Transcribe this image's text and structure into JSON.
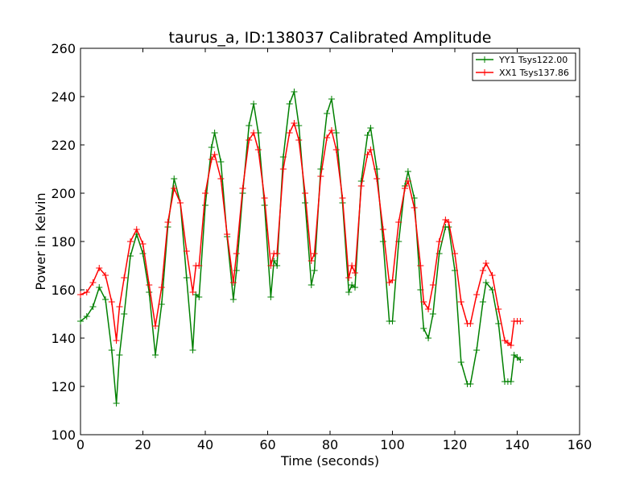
{
  "chart_data": {
    "type": "line",
    "title": "taurus_a, ID:138037 Calibrated Amplitude",
    "xlabel": "Time (seconds)",
    "ylabel": "Power in Kelvin",
    "xlim": [
      0,
      160
    ],
    "ylim": [
      100,
      260
    ],
    "xticks": [
      "0",
      "20",
      "40",
      "60",
      "80",
      "100",
      "120",
      "140",
      "160"
    ],
    "yticks": [
      "100",
      "120",
      "140",
      "160",
      "180",
      "200",
      "220",
      "240",
      "260"
    ],
    "grid": false,
    "legend_position": "top-right",
    "series": [
      {
        "name": "YY1 Tsys122.00",
        "color": "#008000",
        "marker": "+",
        "x": [
          0,
          2,
          4,
          6,
          8,
          10,
          11.5,
          12.5,
          14,
          16,
          18,
          20,
          22,
          24,
          26,
          28,
          30,
          32,
          34,
          36,
          37,
          38,
          40,
          42,
          43,
          45,
          47,
          49,
          50,
          52,
          54,
          55.5,
          57,
          59,
          61,
          62,
          63,
          65,
          67,
          68.5,
          70,
          72,
          74,
          75,
          77,
          79,
          80.5,
          82,
          84,
          86,
          87,
          88,
          90,
          92,
          93,
          95,
          97,
          99,
          100,
          102,
          104,
          105,
          107,
          109,
          110,
          111.5,
          113,
          115,
          117,
          118,
          120,
          122,
          124,
          125,
          127,
          129,
          130,
          132,
          134,
          136,
          137,
          138,
          139,
          140,
          141
        ],
        "y": [
          147,
          149,
          153,
          161,
          156,
          135,
          113,
          133,
          150,
          174,
          183,
          175,
          159,
          133,
          154,
          186,
          206,
          196,
          165,
          135,
          158,
          157,
          195,
          219,
          225,
          213,
          182,
          156,
          168,
          200,
          228,
          237,
          225,
          195,
          157,
          172,
          170,
          215,
          237,
          242,
          228,
          196,
          162,
          168,
          210,
          233,
          239,
          225,
          196,
          159,
          162,
          161,
          205,
          224,
          227,
          210,
          180,
          147,
          147,
          180,
          203,
          209,
          198,
          160,
          144,
          140,
          150,
          175,
          186,
          186,
          168,
          130,
          121,
          121,
          135,
          155,
          163,
          160,
          146,
          122,
          122,
          122,
          133,
          132,
          131
        ]
      },
      {
        "name": "XX1 Tsys137.86",
        "color": "#ff0000",
        "marker": "+",
        "x": [
          0,
          2,
          4,
          6,
          8,
          10,
          11.5,
          12.5,
          14,
          16,
          18,
          20,
          22,
          24,
          26,
          28,
          30,
          32,
          34,
          36,
          37,
          38,
          40,
          42,
          43,
          45,
          47,
          49,
          50,
          52,
          54,
          55.5,
          57,
          59,
          61,
          62,
          63,
          65,
          67,
          68.5,
          70,
          72,
          74,
          75,
          77,
          79,
          80.5,
          82,
          84,
          86,
          87,
          88,
          90,
          92,
          93,
          95,
          97,
          99,
          100,
          102,
          104,
          105,
          107,
          109,
          110,
          111.5,
          113,
          115,
          117,
          118,
          120,
          122,
          124,
          125,
          127,
          129,
          130,
          132,
          134,
          136,
          137,
          138,
          139,
          140,
          141
        ],
        "y": [
          158,
          159,
          163,
          169,
          166,
          155,
          139,
          153,
          165,
          180,
          185,
          179,
          162,
          145,
          161,
          188,
          202,
          196,
          176,
          159,
          170,
          170,
          200,
          214,
          216,
          206,
          183,
          163,
          175,
          202,
          222,
          225,
          218,
          198,
          170,
          175,
          175,
          210,
          225,
          229,
          222,
          200,
          172,
          175,
          207,
          223,
          226,
          218,
          198,
          165,
          170,
          167,
          203,
          216,
          218,
          206,
          185,
          163,
          164,
          188,
          202,
          205,
          194,
          170,
          155,
          152,
          162,
          180,
          189,
          188,
          175,
          155,
          146,
          146,
          158,
          168,
          171,
          166,
          152,
          139,
          138,
          137,
          147,
          147,
          147
        ]
      }
    ]
  }
}
